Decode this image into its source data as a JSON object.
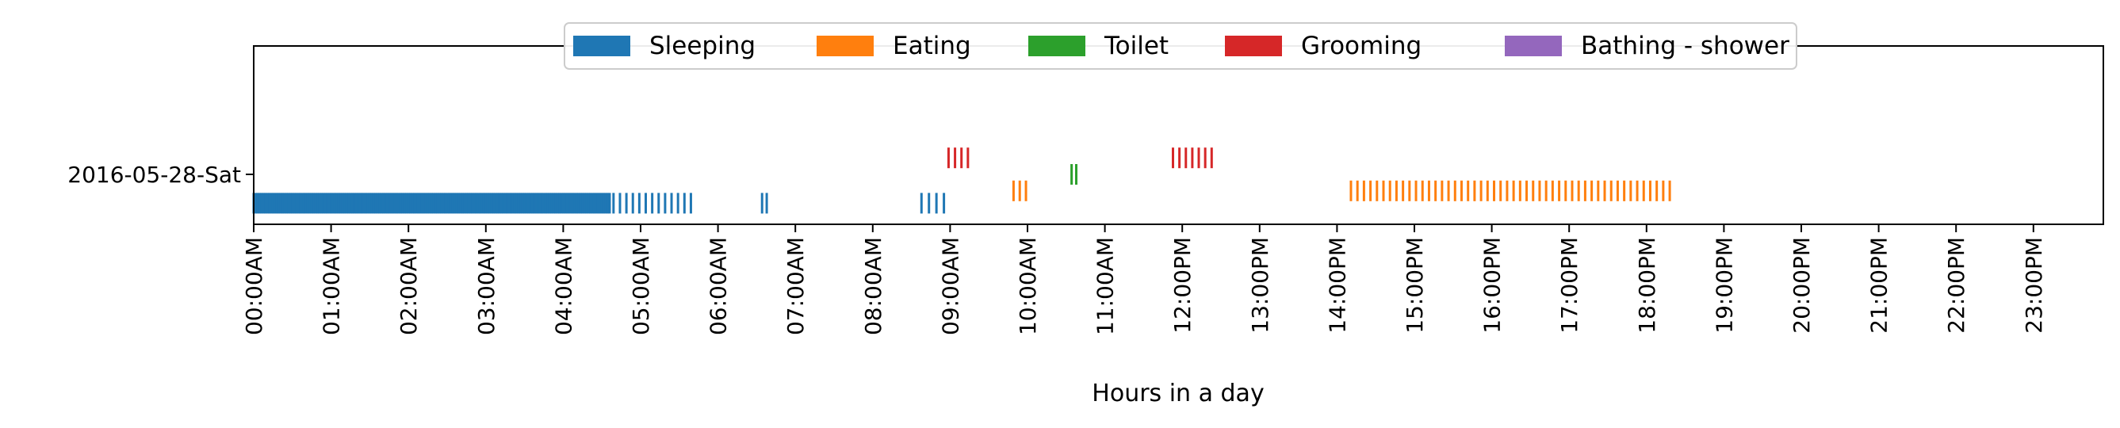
{
  "chart_data": {
    "type": "scatter",
    "title": "",
    "xlabel": "Hours in a day",
    "ylabel": "",
    "xlim_hours": [
      0,
      24
    ],
    "x_ticks": [
      "00:00AM",
      "01:00AM",
      "02:00AM",
      "03:00AM",
      "04:00AM",
      "05:00AM",
      "06:00AM",
      "07:00AM",
      "08:00AM",
      "09:00AM",
      "10:00AM",
      "11:00AM",
      "12:00PM",
      "13:00PM",
      "14:00PM",
      "15:00PM",
      "16:00PM",
      "17:00PM",
      "18:00PM",
      "19:00PM",
      "20:00PM",
      "21:00PM",
      "22:00PM",
      "23:00PM"
    ],
    "y_ticks": [
      "2016-05-28-Sat"
    ],
    "grid": false,
    "legend_position": "top-center",
    "marker": "vertical-line",
    "series": [
      {
        "name": "Sleeping",
        "color": "#1f77b4",
        "level": -0.35,
        "segments": [
          {
            "start": 0.0,
            "end": 4.6,
            "step": 0.025
          },
          {
            "start": 4.65,
            "end": 5.65,
            "step": 0.0833
          },
          {
            "start": 6.57,
            "end": 6.63,
            "step": 0.06
          },
          {
            "start": 8.63,
            "end": 8.92,
            "step": 0.0833
          }
        ]
      },
      {
        "name": "Eating",
        "color": "#ff7f0e",
        "level": -0.2,
        "segments": [
          {
            "start": 9.82,
            "end": 9.98,
            "step": 0.08
          },
          {
            "start": 14.18,
            "end": 18.3,
            "step": 0.0833
          }
        ]
      },
      {
        "name": "Toilet",
        "color": "#2ca02c",
        "level": 0.0,
        "segments": [
          {
            "start": 10.57,
            "end": 10.63,
            "step": 0.06
          }
        ]
      },
      {
        "name": "Grooming",
        "color": "#d62728",
        "level": 0.2,
        "segments": [
          {
            "start": 8.98,
            "end": 9.23,
            "step": 0.0833
          },
          {
            "start": 11.88,
            "end": 12.38,
            "step": 0.0833
          }
        ]
      },
      {
        "name": "Bathing - shower",
        "color": "#9467bd",
        "level": 0.35,
        "segments": []
      }
    ]
  }
}
